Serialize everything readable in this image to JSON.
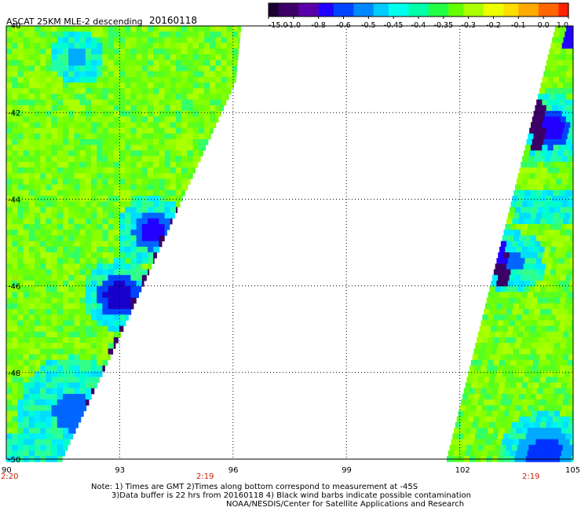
{
  "header": {
    "title": "ASCAT 25KM MLE-2 descending",
    "date": "20160118"
  },
  "colorbar": {
    "labels": [
      "-15.0",
      "-1.0",
      "-0.8",
      "-0.6",
      "-0.5",
      "-0.45",
      "-0.4",
      "-0.35",
      "-0.3",
      "-0.2",
      "-0.1",
      "0.0",
      "1.0"
    ],
    "colors": [
      "#1a0033",
      "#3b0066",
      "#5a00a8",
      "#2200ff",
      "#0044ff",
      "#0088ff",
      "#00ccff",
      "#00ffee",
      "#00ffaa",
      "#22ff44",
      "#66ff00",
      "#aaff00",
      "#eeff00",
      "#ffdd00",
      "#ffaa00",
      "#ff6600",
      "#ff2200"
    ]
  },
  "map": {
    "lat_labels": [
      "-40",
      "-42",
      "-44",
      "-46",
      "-48",
      "-50"
    ],
    "lon_labels": [
      "90",
      "93",
      "96",
      "99",
      "102",
      "105"
    ],
    "time_labels": [
      {
        "text": "2:20"
      },
      {
        "text": "2:19"
      },
      {
        "text": "2:19"
      }
    ]
  },
  "notes": {
    "line1": "Note: 1) Times are GMT 2)Times along bottom correspond to measurement at -45S",
    "line2": "3)Data buffer is 22 hrs from 20160118 4) Black wind barbs indicate possible contamination",
    "line3": "NOAA/NESDIS/Center for Satellite Applications and Research"
  }
}
